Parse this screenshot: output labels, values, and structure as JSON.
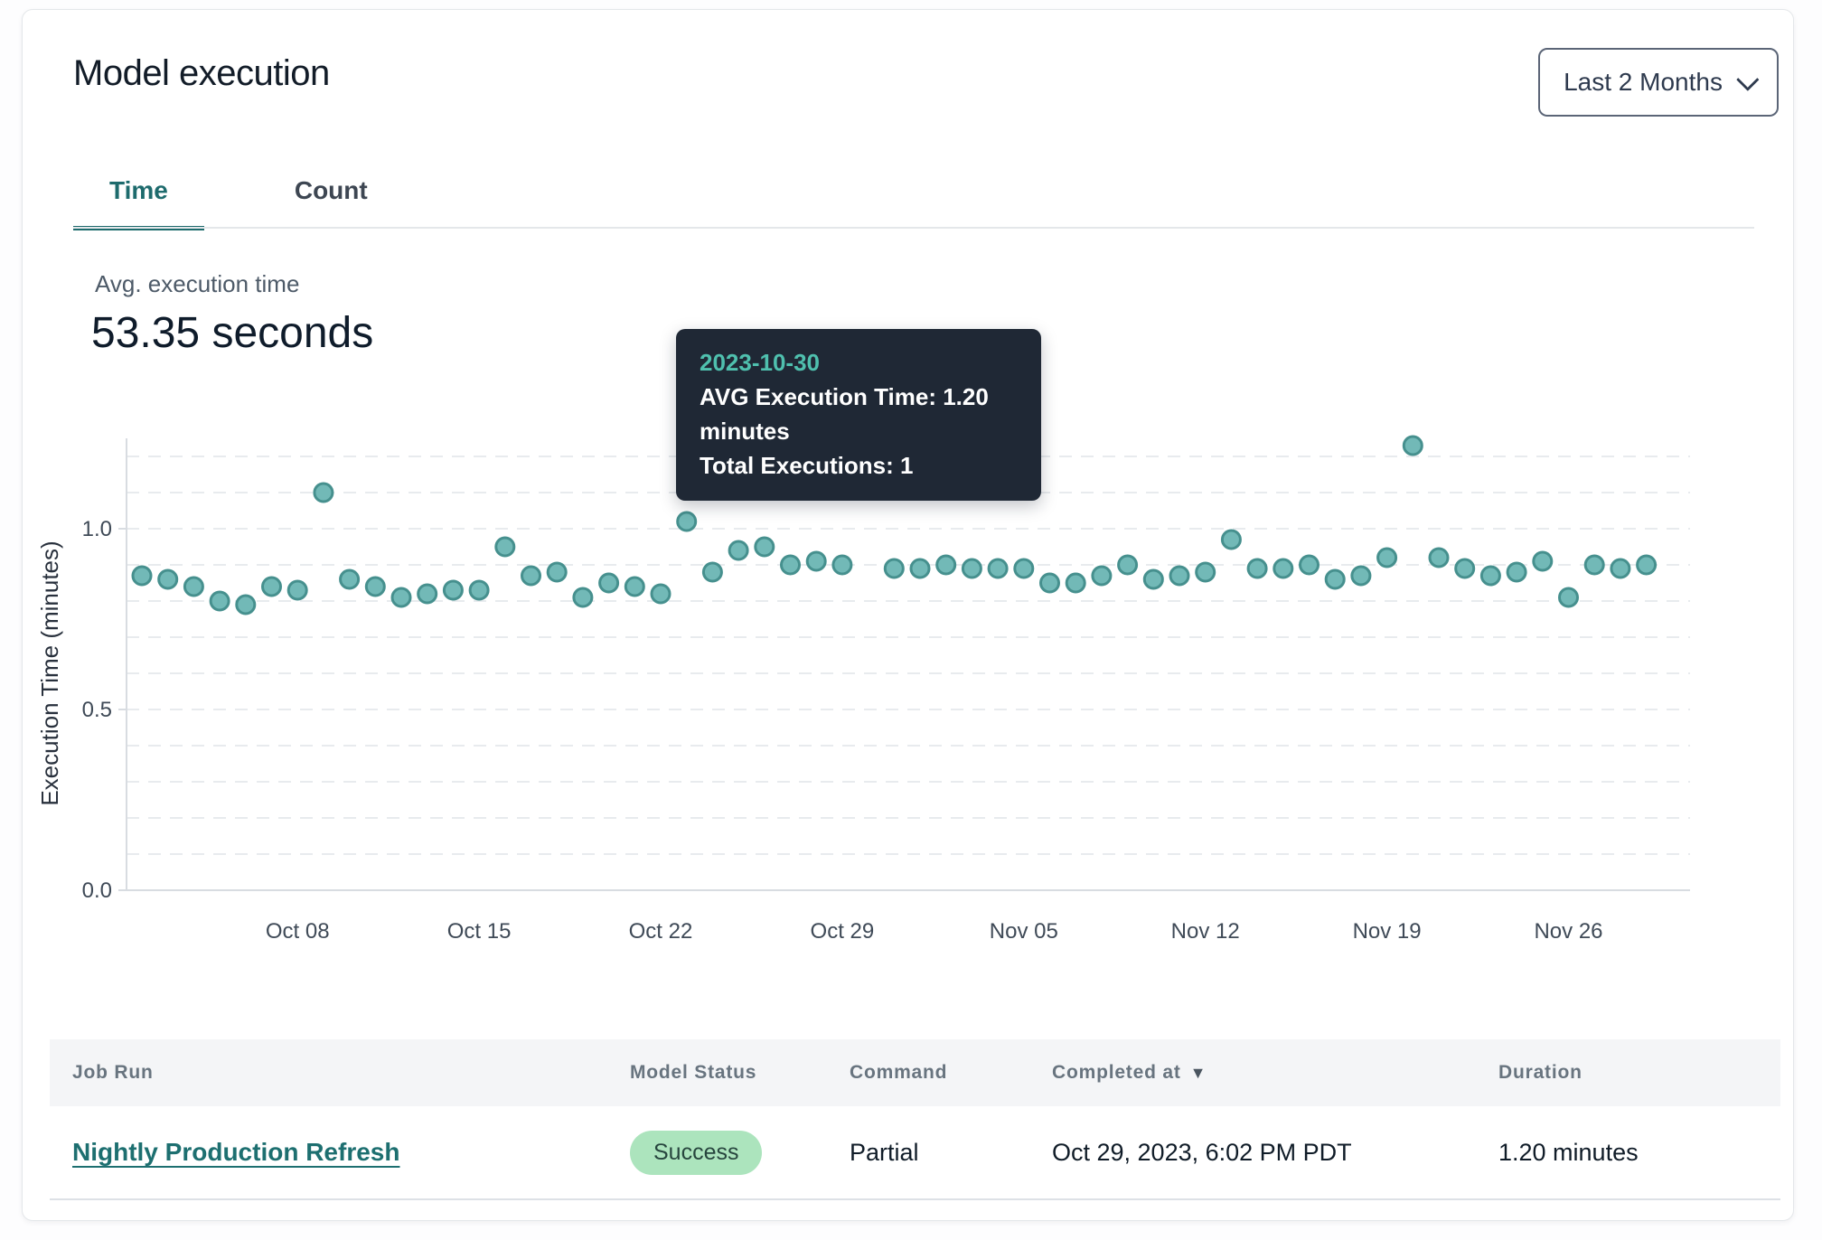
{
  "header": {
    "title": "Model execution",
    "range_selector": {
      "label": "Last 2 Months",
      "icon": "chevron-down"
    }
  },
  "tabs": [
    {
      "label": "Time",
      "active": true
    },
    {
      "label": "Count",
      "active": false
    }
  ],
  "summary": {
    "label": "Avg. execution time",
    "value": "53.35 seconds"
  },
  "tooltip": {
    "date": "2023-10-30",
    "avg_line": "AVG Execution Time: 1.20 minutes",
    "total_line": "Total Executions: 1"
  },
  "chart_data": {
    "type": "scatter",
    "title": "Model execution time per day",
    "xlabel": "",
    "ylabel": "Execution Time (minutes)",
    "ylim": [
      0,
      1.3
    ],
    "grid": "dashed horizontal every 0.1",
    "legend": "none",
    "yticks": [
      {
        "value": 1.0,
        "label": "1.0"
      },
      {
        "value": 0.5,
        "label": "0.5"
      },
      {
        "value": 0.0,
        "label": "0.0"
      }
    ],
    "xticks": [
      {
        "date": "2023-10-08",
        "label": "Oct 08"
      },
      {
        "date": "2023-10-15",
        "label": "Oct 15"
      },
      {
        "date": "2023-10-22",
        "label": "Oct 22"
      },
      {
        "date": "2023-10-29",
        "label": "Oct 29"
      },
      {
        "date": "2023-11-05",
        "label": "Nov 05"
      },
      {
        "date": "2023-11-12",
        "label": "Nov 12"
      },
      {
        "date": "2023-11-19",
        "label": "Nov 19"
      },
      {
        "date": "2023-11-26",
        "label": "Nov 26"
      }
    ],
    "highlighted_point": {
      "date": "2023-10-30",
      "value": 1.2,
      "total_executions": 1
    },
    "points": [
      {
        "date": "2023-10-02",
        "value": 0.87
      },
      {
        "date": "2023-10-03",
        "value": 0.86
      },
      {
        "date": "2023-10-04",
        "value": 0.84
      },
      {
        "date": "2023-10-05",
        "value": 0.8
      },
      {
        "date": "2023-10-06",
        "value": 0.79
      },
      {
        "date": "2023-10-07",
        "value": 0.84
      },
      {
        "date": "2023-10-08",
        "value": 0.83
      },
      {
        "date": "2023-10-09",
        "value": 1.1
      },
      {
        "date": "2023-10-10",
        "value": 0.86
      },
      {
        "date": "2023-10-11",
        "value": 0.84
      },
      {
        "date": "2023-10-12",
        "value": 0.81
      },
      {
        "date": "2023-10-13",
        "value": 0.82
      },
      {
        "date": "2023-10-14",
        "value": 0.83
      },
      {
        "date": "2023-10-15",
        "value": 0.83
      },
      {
        "date": "2023-10-16",
        "value": 0.95
      },
      {
        "date": "2023-10-17",
        "value": 0.87
      },
      {
        "date": "2023-10-18",
        "value": 0.88
      },
      {
        "date": "2023-10-19",
        "value": 0.81
      },
      {
        "date": "2023-10-20",
        "value": 0.85
      },
      {
        "date": "2023-10-21",
        "value": 0.84
      },
      {
        "date": "2023-10-22",
        "value": 0.82
      },
      {
        "date": "2023-10-23",
        "value": 1.02
      },
      {
        "date": "2023-10-24",
        "value": 0.88
      },
      {
        "date": "2023-10-25",
        "value": 0.94
      },
      {
        "date": "2023-10-26",
        "value": 0.95
      },
      {
        "date": "2023-10-27",
        "value": 0.9
      },
      {
        "date": "2023-10-28",
        "value": 0.91
      },
      {
        "date": "2023-10-29",
        "value": 0.9
      },
      {
        "date": "2023-10-30",
        "value": 1.2,
        "highlighted": true
      },
      {
        "date": "2023-10-31",
        "value": 0.89
      },
      {
        "date": "2023-11-01",
        "value": 0.89
      },
      {
        "date": "2023-11-02",
        "value": 0.9
      },
      {
        "date": "2023-11-03",
        "value": 0.89
      },
      {
        "date": "2023-11-04",
        "value": 0.89
      },
      {
        "date": "2023-11-05",
        "value": 0.89
      },
      {
        "date": "2023-11-06",
        "value": 0.85
      },
      {
        "date": "2023-11-07",
        "value": 0.85
      },
      {
        "date": "2023-11-08",
        "value": 0.87
      },
      {
        "date": "2023-11-09",
        "value": 0.9
      },
      {
        "date": "2023-11-10",
        "value": 0.86
      },
      {
        "date": "2023-11-11",
        "value": 0.87
      },
      {
        "date": "2023-11-12",
        "value": 0.88
      },
      {
        "date": "2023-11-13",
        "value": 0.97
      },
      {
        "date": "2023-11-14",
        "value": 0.89
      },
      {
        "date": "2023-11-15",
        "value": 0.89
      },
      {
        "date": "2023-11-16",
        "value": 0.9
      },
      {
        "date": "2023-11-17",
        "value": 0.86
      },
      {
        "date": "2023-11-18",
        "value": 0.87
      },
      {
        "date": "2023-11-19",
        "value": 0.92
      },
      {
        "date": "2023-11-20",
        "value": 1.23
      },
      {
        "date": "2023-11-21",
        "value": 0.92
      },
      {
        "date": "2023-11-22",
        "value": 0.89
      },
      {
        "date": "2023-11-23",
        "value": 0.87
      },
      {
        "date": "2023-11-24",
        "value": 0.88
      },
      {
        "date": "2023-11-25",
        "value": 0.91
      },
      {
        "date": "2023-11-26",
        "value": 0.81
      },
      {
        "date": "2023-11-27",
        "value": 0.9
      },
      {
        "date": "2023-11-28",
        "value": 0.89
      },
      {
        "date": "2023-11-29",
        "value": 0.9
      }
    ],
    "colors": {
      "dot_fill": "#72b9b7",
      "dot_stroke": "#46908e",
      "dot_highlight": "#4d8b90",
      "grid": "#e8ebee",
      "axis": "#d8dce1",
      "tick_text": "#3f4a57",
      "axis_title": "#28303c"
    }
  },
  "table": {
    "columns": [
      {
        "label": "Job Run",
        "sortable": false
      },
      {
        "label": "Model Status",
        "sortable": false
      },
      {
        "label": "Command",
        "sortable": false
      },
      {
        "label": "Completed at",
        "sortable": true,
        "sort": "desc",
        "sort_icon": "triangle-down"
      },
      {
        "label": "Duration",
        "sortable": false
      }
    ],
    "rows": [
      {
        "job_run": "Nightly Production Refresh",
        "model_status": "Success",
        "command": "Partial",
        "completed_at": "Oct 29, 2023, 6:02 PM PDT",
        "duration": "1.20 minutes"
      }
    ]
  },
  "colors": {
    "accent_teal": "#1e6b6d",
    "link_teal": "#1d6f70",
    "tooltip_bg": "#1f2835",
    "tooltip_date": "#4fc0ae",
    "badge_bg": "#ace4bd",
    "badge_text": "#27453e",
    "header_bg": "#f4f5f7"
  }
}
